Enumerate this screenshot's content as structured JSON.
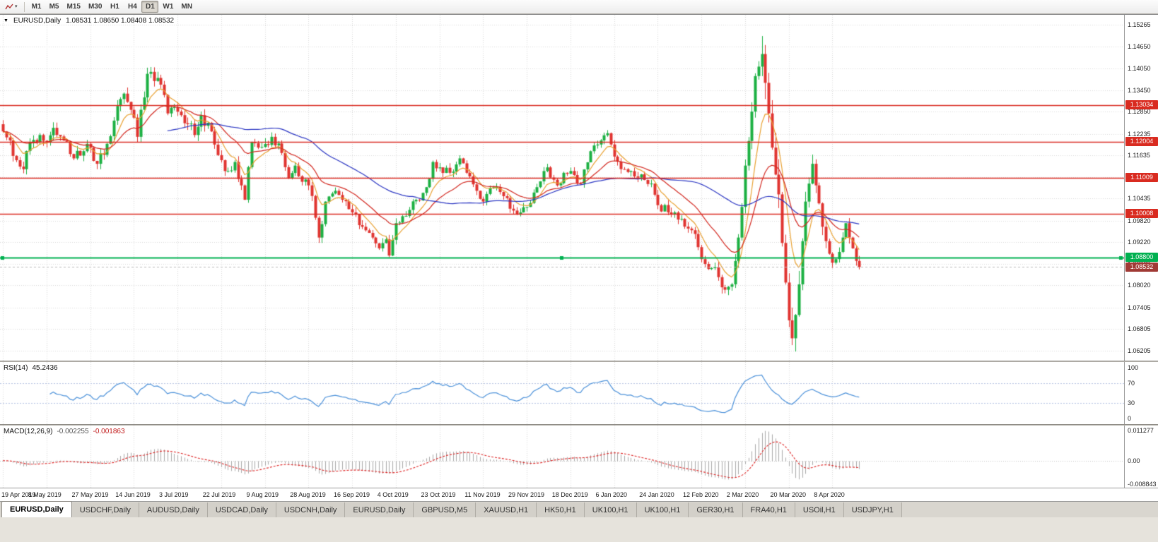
{
  "icons": {
    "dropdown_caret": "▾",
    "collapse_arrow": "▼"
  },
  "toolbar": {
    "timeframes": [
      {
        "label": "M1",
        "active": false
      },
      {
        "label": "M5",
        "active": false
      },
      {
        "label": "M15",
        "active": false
      },
      {
        "label": "M30",
        "active": false
      },
      {
        "label": "H1",
        "active": false
      },
      {
        "label": "H4",
        "active": false
      },
      {
        "label": "D1",
        "active": true
      },
      {
        "label": "W1",
        "active": false
      },
      {
        "label": "MN",
        "active": false
      }
    ]
  },
  "chart": {
    "title_symbol": "EURUSD,Daily",
    "ohlc": "1.08531 1.08650 1.08408 1.08532"
  },
  "rsi": {
    "label": "RSI(14)",
    "value": "45.2436",
    "axis_labels": [
      "100",
      "70",
      "30",
      "0"
    ],
    "level_lines": [
      70,
      30
    ]
  },
  "macd": {
    "label": "MACD(12,26,9)",
    "value_main": "-0.002255",
    "value_signal": "-0.001863",
    "axis_labels": [
      "0.011277",
      "0.00",
      "-0.008843"
    ]
  },
  "tabs": {
    "items": [
      {
        "label": "EURUSD,Daily",
        "active": true
      },
      {
        "label": "USDCHF,Daily",
        "active": false
      },
      {
        "label": "AUDUSD,Daily",
        "active": false
      },
      {
        "label": "USDCAD,Daily",
        "active": false
      },
      {
        "label": "USDCNH,Daily",
        "active": false
      },
      {
        "label": "EURUSD,Daily",
        "active": false
      },
      {
        "label": "GBPUSD,M5",
        "active": false
      },
      {
        "label": "XAUUSD,H1",
        "active": false
      },
      {
        "label": "HK50,H1",
        "active": false
      },
      {
        "label": "UK100,H1",
        "active": false
      },
      {
        "label": "UK100,H1",
        "active": false
      },
      {
        "label": "GER30,H1",
        "active": false
      },
      {
        "label": "FRA40,H1",
        "active": false
      },
      {
        "label": "USOil,H1",
        "active": false
      },
      {
        "label": "USDJPY,H1",
        "active": false
      }
    ]
  },
  "chart_data": {
    "type": "candlestick",
    "symbol": "EURUSD",
    "timeframe": "Daily",
    "y_axis_labels": [
      "1.15265",
      "1.14650",
      "1.14050",
      "1.13450",
      "1.12850",
      "1.12235",
      "1.11635",
      "1.11030",
      "1.10435",
      "1.09820",
      "1.09220",
      "1.08620",
      "1.08020",
      "1.07405",
      "1.06805",
      "1.06205"
    ],
    "x_axis_labels": [
      "19 Apr 2019",
      "8 May 2019",
      "27 May 2019",
      "14 Jun 2019",
      "3 Jul 2019",
      "22 Jul 2019",
      "9 Aug 2019",
      "28 Aug 2019",
      "16 Sep 2019",
      "4 Oct 2019",
      "23 Oct 2019",
      "11 Nov 2019",
      "29 Nov 2019",
      "18 Dec 2019",
      "6 Jan 2020",
      "24 Jan 2020",
      "12 Feb 2020",
      "2 Mar 2020",
      "20 Mar 2020",
      "8 Apr 2020"
    ],
    "bars_per_label": 13,
    "bar_count": 256,
    "price_range": {
      "max": 1.1554,
      "min": 1.0593
    },
    "levels": [
      {
        "price": 1.13034,
        "label": "1.13034",
        "color": "#d92b20",
        "kind": "resistance"
      },
      {
        "price": 1.12004,
        "label": "1.12004",
        "color": "#d92b20",
        "kind": "resistance"
      },
      {
        "price": 1.11009,
        "label": "1.11009",
        "color": "#d92b20",
        "kind": "resistance"
      },
      {
        "price": 1.10008,
        "label": "1.10008",
        "color": "#d92b20",
        "kind": "resistance"
      },
      {
        "price": 1.088,
        "label": "1.08800",
        "color": "#00b050",
        "kind": "support"
      }
    ],
    "current_price": {
      "price": 1.08532,
      "label": "1.08532",
      "color": "#a03a35"
    },
    "close_anchors": [
      [
        0,
        1.123
      ],
      [
        2,
        1.1205
      ],
      [
        4,
        1.115
      ],
      [
        6,
        1.1125
      ],
      [
        8,
        1.12
      ],
      [
        11,
        1.122
      ],
      [
        13,
        1.12
      ],
      [
        15,
        1.124
      ],
      [
        18,
        1.1205
      ],
      [
        21,
        1.1155
      ],
      [
        24,
        1.1175
      ],
      [
        26,
        1.1185
      ],
      [
        28,
        1.114
      ],
      [
        30,
        1.1165
      ],
      [
        33,
        1.126
      ],
      [
        36,
        1.1335
      ],
      [
        38,
        1.129
      ],
      [
        40,
        1.1215
      ],
      [
        43,
        1.139
      ],
      [
        45,
        1.137
      ],
      [
        47,
        1.136
      ],
      [
        49,
        1.128
      ],
      [
        52,
        1.1285
      ],
      [
        55,
        1.125
      ],
      [
        57,
        1.122
      ],
      [
        59,
        1.1275
      ],
      [
        62,
        1.123
      ],
      [
        65,
        1.115
      ],
      [
        67,
        1.112
      ],
      [
        69,
        1.1145
      ],
      [
        71,
        1.108
      ],
      [
        72,
        1.104
      ],
      [
        74,
        1.12
      ],
      [
        76,
        1.1185
      ],
      [
        78,
        1.1195
      ],
      [
        80,
        1.1215
      ],
      [
        83,
        1.117
      ],
      [
        85,
        1.11
      ],
      [
        87,
        1.1135
      ],
      [
        89,
        1.109
      ],
      [
        91,
        1.108
      ],
      [
        93,
        1.099
      ],
      [
        94,
        1.0935
      ],
      [
        96,
        1.1035
      ],
      [
        99,
        1.1065
      ],
      [
        101,
        1.104
      ],
      [
        104,
        1.1005
      ],
      [
        107,
        1.0965
      ],
      [
        110,
        1.0935
      ],
      [
        112,
        1.0905
      ],
      [
        114,
        1.093
      ],
      [
        115,
        1.0885
      ],
      [
        117,
        1.0975
      ],
      [
        120,
        1.0995
      ],
      [
        123,
        1.104
      ],
      [
        126,
        1.1075
      ],
      [
        128,
        1.1145
      ],
      [
        130,
        1.113
      ],
      [
        133,
        1.1115
      ],
      [
        136,
        1.1155
      ],
      [
        139,
        1.1105
      ],
      [
        141,
        1.1065
      ],
      [
        143,
        1.1035
      ],
      [
        146,
        1.1075
      ],
      [
        149,
        1.105
      ],
      [
        152,
        1.101
      ],
      [
        154,
        1.1005
      ],
      [
        156,
        1.102
      ],
      [
        159,
        1.1075
      ],
      [
        162,
        1.113
      ],
      [
        165,
        1.108
      ],
      [
        167,
        1.1115
      ],
      [
        169,
        1.112
      ],
      [
        172,
        1.1085
      ],
      [
        175,
        1.1175
      ],
      [
        178,
        1.1205
      ],
      [
        180,
        1.1225
      ],
      [
        182,
        1.116
      ],
      [
        185,
        1.1125
      ],
      [
        188,
        1.1105
      ],
      [
        191,
        1.1095
      ],
      [
        193,
        1.1085
      ],
      [
        195,
        1.1025
      ],
      [
        198,
        1.1005
      ],
      [
        201,
        1.0985
      ],
      [
        204,
        1.096
      ],
      [
        206,
        1.0945
      ],
      [
        208,
        1.0875
      ],
      [
        211,
        1.085
      ],
      [
        213,
        1.0825
      ],
      [
        215,
        1.079
      ],
      [
        217,
        1.0805
      ],
      [
        219,
        1.0935
      ],
      [
        221,
        1.1135
      ],
      [
        223,
        1.1285
      ],
      [
        225,
        1.141
      ],
      [
        226,
        1.1445
      ],
      [
        227,
        1.1365
      ],
      [
        228,
        1.128
      ],
      [
        229,
        1.1185
      ],
      [
        230,
        1.111
      ],
      [
        231,
        1.1055
      ],
      [
        232,
        1.092
      ],
      [
        233,
        1.081
      ],
      [
        234,
        1.0705
      ],
      [
        235,
        1.0655
      ],
      [
        236,
        1.072
      ],
      [
        237,
        1.0805
      ],
      [
        238,
        1.0925
      ],
      [
        239,
        1.1035
      ],
      [
        240,
        1.1085
      ],
      [
        241,
        1.114
      ],
      [
        242,
        1.108
      ],
      [
        243,
        1.103
      ],
      [
        244,
        1.0965
      ],
      [
        245,
        1.0925
      ],
      [
        246,
        1.089
      ],
      [
        247,
        1.0865
      ],
      [
        248,
        1.0875
      ],
      [
        249,
        1.0895
      ],
      [
        250,
        1.0935
      ],
      [
        251,
        1.0975
      ],
      [
        252,
        1.0935
      ],
      [
        253,
        1.0905
      ],
      [
        254,
        1.087
      ],
      [
        255,
        1.08532
      ]
    ],
    "volatility_anchors": [
      [
        0,
        0.0045
      ],
      [
        40,
        0.005
      ],
      [
        90,
        0.0045
      ],
      [
        115,
        0.004
      ],
      [
        150,
        0.0035
      ],
      [
        180,
        0.0035
      ],
      [
        208,
        0.0045
      ],
      [
        218,
        0.006
      ],
      [
        222,
        0.009
      ],
      [
        226,
        0.014
      ],
      [
        232,
        0.013
      ],
      [
        236,
        0.012
      ],
      [
        240,
        0.009
      ],
      [
        245,
        0.007
      ],
      [
        250,
        0.005
      ],
      [
        255,
        0.0045
      ]
    ],
    "extremes": {
      "high": [
        226,
        1.1495
      ],
      "low": [
        235,
        1.0636
      ]
    },
    "moving_averages": [
      {
        "period": 8,
        "type": "ema",
        "color": "#e8a030"
      },
      {
        "period": 21,
        "type": "ema",
        "color": "#d22820"
      },
      {
        "period": 50,
        "type": "sma",
        "color": "#2a35c2"
      }
    ],
    "colors": {
      "bull": "#1cb043",
      "bear": "#e03430",
      "grid": "#d8d8d8",
      "rsi_line": "#4a90d9",
      "rsi_levels": "#b4c2e2",
      "macd_hist": "#a8a8a8",
      "macd_signal": "#dd2222",
      "current_line": "#b8b8b8"
    },
    "rsi_range": [
      0,
      100
    ],
    "macd_range": [
      -0.009,
      0.0115
    ]
  }
}
